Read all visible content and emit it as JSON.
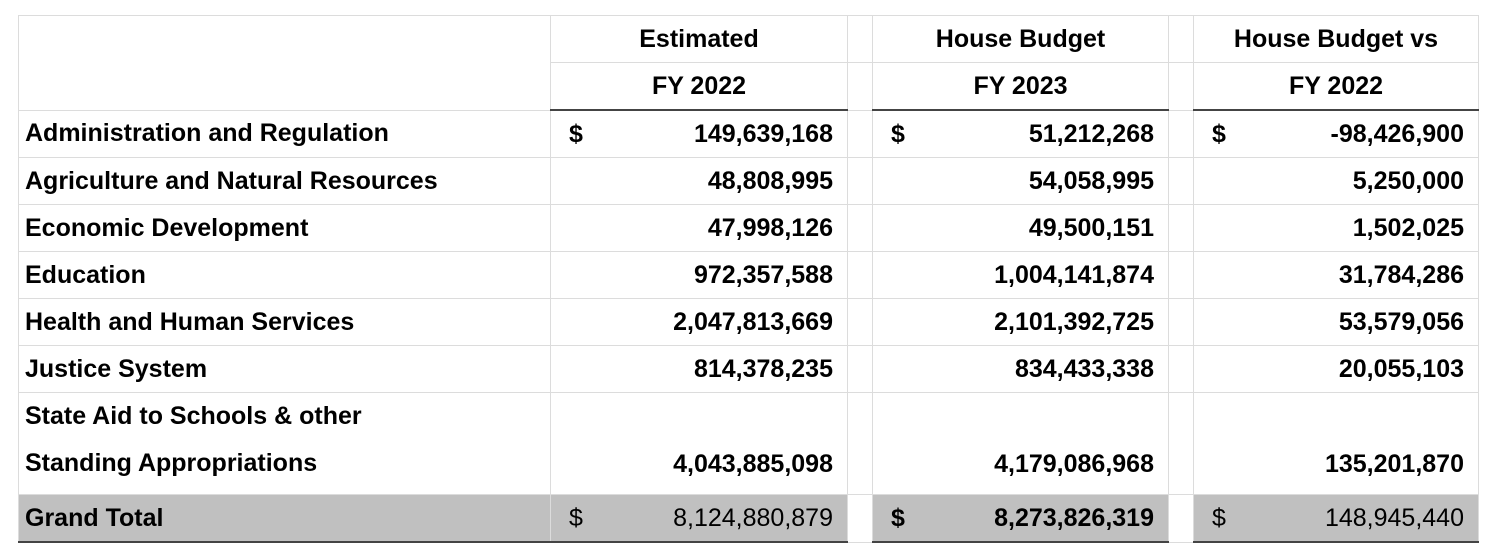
{
  "table": {
    "currency": "$",
    "columns": [
      {
        "lines": [
          "Estimated",
          "FY 2022"
        ]
      },
      {
        "lines": [
          "House Budget",
          "FY 2023"
        ]
      },
      {
        "lines": [
          "House Budget vs",
          "FY 2022"
        ]
      }
    ],
    "rows": [
      {
        "label": [
          "Administration and Regulation"
        ],
        "currency_shown": true,
        "values": [
          "149,639,168",
          "51,212,268",
          "-98,426,900"
        ]
      },
      {
        "label": [
          "Agriculture and Natural Resources"
        ],
        "currency_shown": false,
        "values": [
          "48,808,995",
          "54,058,995",
          "5,250,000"
        ]
      },
      {
        "label": [
          "Economic Development"
        ],
        "currency_shown": false,
        "values": [
          "47,998,126",
          "49,500,151",
          "1,502,025"
        ]
      },
      {
        "label": [
          "Education"
        ],
        "currency_shown": false,
        "values": [
          "972,357,588",
          "1,004,141,874",
          "31,784,286"
        ]
      },
      {
        "label": [
          "Health and Human Services"
        ],
        "currency_shown": false,
        "values": [
          "2,047,813,669",
          "2,101,392,725",
          "53,579,056"
        ]
      },
      {
        "label": [
          "Justice System"
        ],
        "currency_shown": false,
        "values": [
          "814,378,235",
          "834,433,338",
          "20,055,103"
        ]
      },
      {
        "label": [
          "State Aid to Schools & other",
          "Standing Appropriations"
        ],
        "currency_shown": false,
        "values": [
          "4,043,885,098",
          "4,179,086,968",
          "135,201,870"
        ]
      }
    ],
    "total": {
      "label": "Grand Total",
      "values": [
        "8,124,880,879",
        "8,273,826,319",
        "148,945,440"
      ]
    }
  }
}
